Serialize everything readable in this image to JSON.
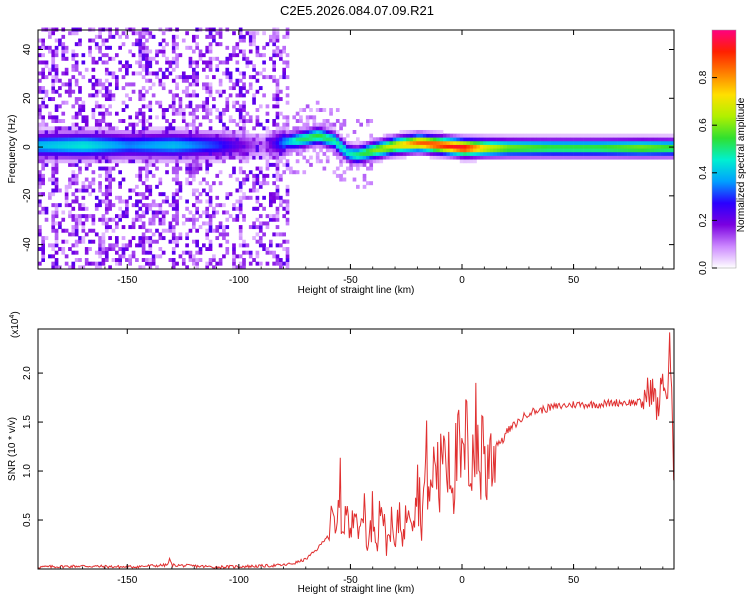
{
  "chart_data": [
    {
      "type": "heatmap",
      "title": "C2E5.2026.084.07.09.R21",
      "xlabel": "Height of straight line (km)",
      "ylabel": "Frequency (Hz)",
      "xlim": [
        -190,
        95
      ],
      "ylim": [
        -50,
        48
      ],
      "xticks": [
        "-150",
        "-100",
        "-50",
        "0",
        "50"
      ],
      "yticks": [
        "-40",
        "-20",
        "0",
        "20",
        "40"
      ],
      "colorbar": {
        "label": "Normalized spectral amplitude",
        "range": [
          0,
          1
        ],
        "ticks": [
          "0.0",
          "0.2",
          "0.4",
          "0.6",
          "0.8"
        ],
        "colors": [
          "#ffffff",
          "#cc88ff",
          "#7a00e0",
          "#2a00ff",
          "#00a0ff",
          "#00f0d0",
          "#30e030",
          "#b0f000",
          "#ffe000",
          "#ff8000",
          "#ff2000",
          "#ff0080"
        ]
      },
      "ridge": {
        "x": [
          -190,
          -170,
          -150,
          -130,
          -110,
          -90,
          -75,
          -65,
          -58,
          -52,
          -48,
          -44,
          -40,
          -30,
          -20,
          -10,
          0,
          10,
          20,
          40,
          60,
          80,
          95
        ],
        "freq": [
          0,
          0,
          0,
          0,
          0,
          0,
          2,
          4,
          2,
          -3,
          -4,
          -3,
          -2,
          0,
          1,
          0,
          -1,
          -1,
          -1,
          -1,
          -1,
          -1,
          -1
        ],
        "peak": [
          0.4,
          0.45,
          0.35,
          0.4,
          0.3,
          0.1,
          0.5,
          0.55,
          0.5,
          0.45,
          0.5,
          0.55,
          0.6,
          0.7,
          0.85,
          0.9,
          0.95,
          0.7,
          0.6,
          0.55,
          0.55,
          0.6,
          0.55
        ]
      }
    },
    {
      "type": "line",
      "xlabel": "Height of straight line (km)",
      "ylabel": "SNR (10 * v/v)",
      "exponent_label": "(x10",
      "exponent_power": "4",
      "exponent_close": ")",
      "xlim": [
        -190,
        95
      ],
      "ylim": [
        0,
        2.45
      ],
      "xticks": [
        "-150",
        "-100",
        "-50",
        "0",
        "50"
      ],
      "yticks": [
        "0.5",
        "1.0",
        "1.5",
        "2.0"
      ],
      "series": [
        {
          "name": "SNR",
          "color": "#e03030",
          "x": [
            -190,
            -170,
            -150,
            -132,
            -131,
            -130,
            -110,
            -90,
            -80,
            -75,
            -70,
            -65,
            -60,
            -58,
            -56,
            -55,
            -54,
            -52,
            -50,
            -48,
            -47,
            -46,
            -44,
            -42,
            -40,
            -38,
            -36,
            -34,
            -32,
            -30,
            -28,
            -26,
            -24,
            -22,
            -20,
            -18,
            -16,
            -14,
            -12,
            -10,
            -8,
            -7,
            -6,
            -4,
            -2,
            0,
            2,
            4,
            6,
            8,
            10,
            11,
            12,
            14,
            16,
            18,
            20,
            25,
            30,
            35,
            40,
            50,
            60,
            70,
            80,
            85,
            88,
            90,
            92,
            93,
            94,
            95
          ],
          "y": [
            0.02,
            0.03,
            0.02,
            0.04,
            0.1,
            0.04,
            0.02,
            0.03,
            0.04,
            0.06,
            0.1,
            0.2,
            0.35,
            0.5,
            0.3,
            1.1,
            0.4,
            0.6,
            0.3,
            1.0,
            0.5,
            0.3,
            0.7,
            0.2,
            0.6,
            0.3,
            0.8,
            0.2,
            0.5,
            0.2,
            0.6,
            0.3,
            0.8,
            0.6,
            0.9,
            0.5,
            1.1,
            0.7,
            1.2,
            0.8,
            1.6,
            1.0,
            1.3,
            0.9,
            1.2,
            1.0,
            1.3,
            1.1,
            1.4,
            1.0,
            1.6,
            0.55,
            1.3,
            1.2,
            1.3,
            1.3,
            1.4,
            1.5,
            1.6,
            1.62,
            1.65,
            1.68,
            1.68,
            1.7,
            1.7,
            1.85,
            1.6,
            2.0,
            1.7,
            2.3,
            1.8,
            0.6
          ]
        }
      ]
    }
  ]
}
